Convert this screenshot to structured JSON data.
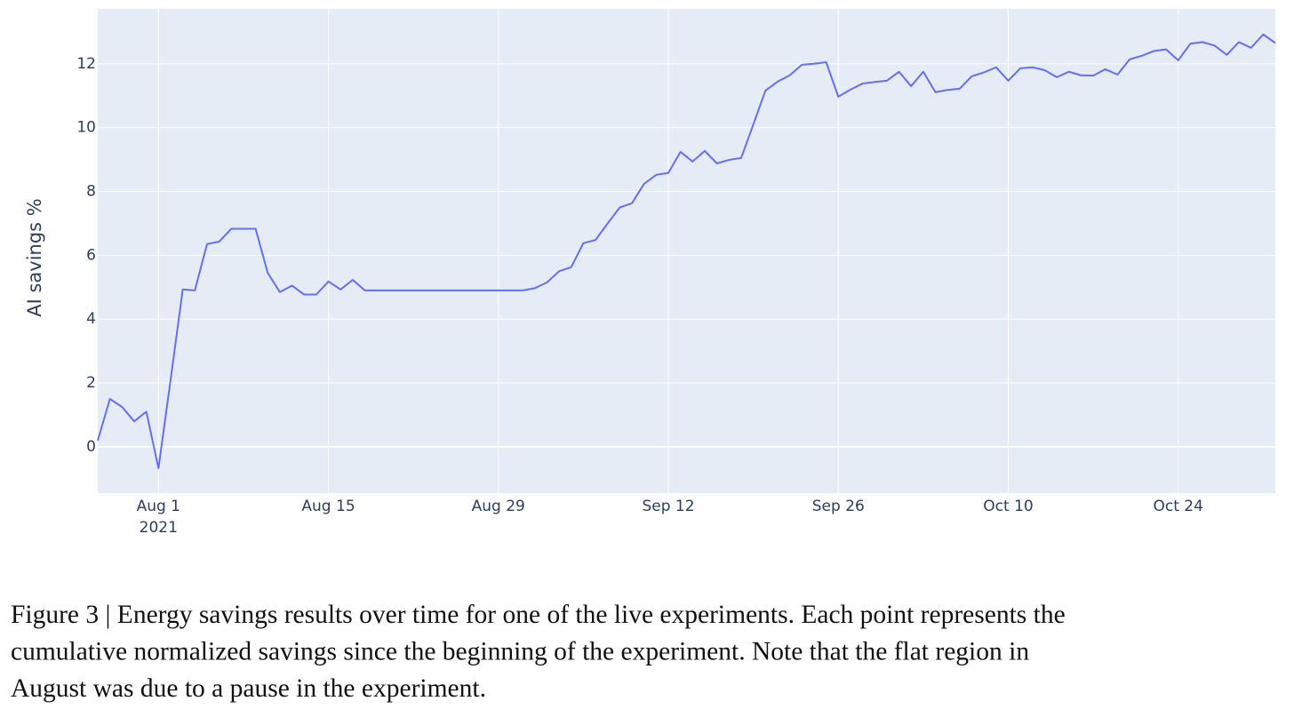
{
  "chart_data": {
    "type": "line",
    "y_label": "AI savings %",
    "x": [
      "2021-07-27",
      "2021-07-28",
      "2021-07-29",
      "2021-07-30",
      "2021-07-31",
      "2021-08-01",
      "2021-08-02",
      "2021-08-03",
      "2021-08-04",
      "2021-08-05",
      "2021-08-06",
      "2021-08-07",
      "2021-08-08",
      "2021-08-09",
      "2021-08-10",
      "2021-08-11",
      "2021-08-12",
      "2021-08-13",
      "2021-08-14",
      "2021-08-15",
      "2021-08-16",
      "2021-08-17",
      "2021-08-18",
      "2021-08-19",
      "2021-08-20",
      "2021-08-21",
      "2021-08-22",
      "2021-08-23",
      "2021-08-24",
      "2021-08-25",
      "2021-08-26",
      "2021-08-27",
      "2021-08-28",
      "2021-08-29",
      "2021-08-30",
      "2021-08-31",
      "2021-09-01",
      "2021-09-02",
      "2021-09-03",
      "2021-09-04",
      "2021-09-05",
      "2021-09-06",
      "2021-09-07",
      "2021-09-08",
      "2021-09-09",
      "2021-09-10",
      "2021-09-11",
      "2021-09-12",
      "2021-09-13",
      "2021-09-14",
      "2021-09-15",
      "2021-09-16",
      "2021-09-17",
      "2021-09-18",
      "2021-09-19",
      "2021-09-20",
      "2021-09-21",
      "2021-09-22",
      "2021-09-23",
      "2021-09-24",
      "2021-09-25",
      "2021-09-26",
      "2021-09-27",
      "2021-09-28",
      "2021-09-29",
      "2021-09-30",
      "2021-10-01",
      "2021-10-02",
      "2021-10-03",
      "2021-10-04",
      "2021-10-05",
      "2021-10-06",
      "2021-10-07",
      "2021-10-08",
      "2021-10-09",
      "2021-10-10",
      "2021-10-11",
      "2021-10-12",
      "2021-10-13",
      "2021-10-14",
      "2021-10-15",
      "2021-10-16",
      "2021-10-17",
      "2021-10-18",
      "2021-10-19",
      "2021-10-20",
      "2021-10-21",
      "2021-10-22",
      "2021-10-23",
      "2021-10-24",
      "2021-10-25",
      "2021-10-26",
      "2021-10-27",
      "2021-10-28",
      "2021-10-29",
      "2021-10-30",
      "2021-10-31",
      "2021-11-01"
    ],
    "series": [
      {
        "color": "#636efa",
        "values": [
          0.2,
          1.5,
          1.25,
          0.8,
          1.1,
          -0.67,
          2.1,
          4.93,
          4.9,
          6.35,
          6.43,
          6.83,
          6.83,
          6.83,
          5.45,
          4.85,
          5.05,
          4.77,
          4.77,
          5.18,
          4.93,
          5.23,
          4.9,
          4.9,
          4.9,
          4.9,
          4.9,
          4.9,
          4.9,
          4.9,
          4.9,
          4.9,
          4.9,
          4.9,
          4.9,
          4.9,
          4.97,
          5.15,
          5.5,
          5.63,
          6.38,
          6.48,
          7.0,
          7.5,
          7.63,
          8.24,
          8.52,
          8.58,
          9.24,
          8.94,
          9.27,
          8.88,
          8.99,
          9.05,
          10.1,
          11.16,
          11.44,
          11.64,
          11.97,
          12.0,
          12.05,
          10.97,
          11.19,
          11.38,
          11.43,
          11.47,
          11.75,
          11.3,
          11.75,
          11.11,
          11.18,
          11.22,
          11.61,
          11.73,
          11.89,
          11.47,
          11.86,
          11.89,
          11.8,
          11.58,
          11.75,
          11.64,
          11.63,
          11.83,
          11.66,
          12.14,
          12.25,
          12.4,
          12.45,
          12.11,
          12.63,
          12.68,
          12.57,
          12.28,
          12.68,
          12.5,
          12.92,
          12.65
        ]
      }
    ],
    "xlim": [
      "2021-07-27",
      "2021-11-01"
    ],
    "xticks": [
      {
        "value": "2021-08-01",
        "label": "Aug 1",
        "year": "2021"
      },
      {
        "value": "2021-08-15",
        "label": "Aug 15"
      },
      {
        "value": "2021-08-29",
        "label": "Aug 29"
      },
      {
        "value": "2021-09-12",
        "label": "Sep 12"
      },
      {
        "value": "2021-09-26",
        "label": "Sep 26"
      },
      {
        "value": "2021-10-10",
        "label": "Oct 10"
      },
      {
        "value": "2021-10-24",
        "label": "Oct 24"
      }
    ],
    "ylim": [
      -1.45,
      13.72
    ],
    "yticks": [
      0,
      2,
      4,
      6,
      8,
      10,
      12
    ],
    "grid": true,
    "background": "#e5ecf6"
  },
  "caption": {
    "lines": [
      "Figure 3 | Energy savings results over time for one of the live experiments. Each point represents the",
      "cumulative normalized savings since the beginning of the experiment. Note that the flat region in",
      "August was due to a pause in the experiment."
    ]
  }
}
